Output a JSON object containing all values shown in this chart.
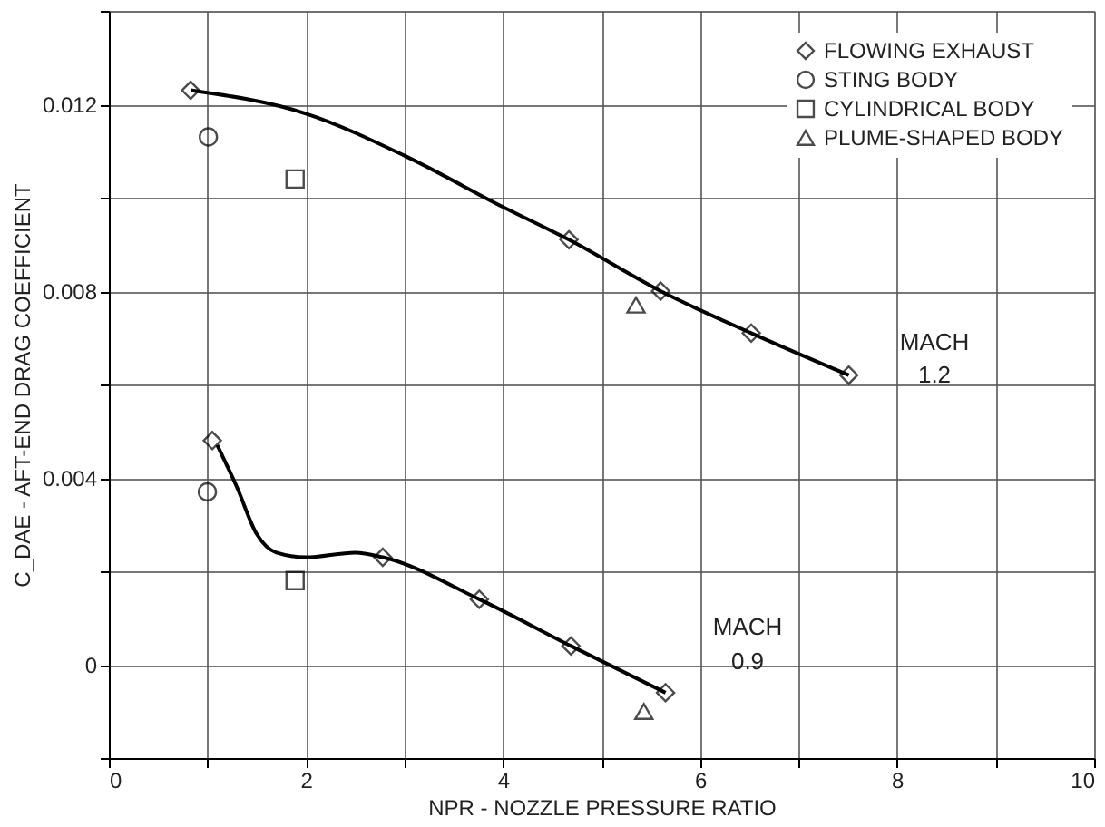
{
  "chart_data": {
    "type": "scatter",
    "xlabel": "NPR - NOZZLE PRESSURE RATIO",
    "ylabel": "C_DAE - AFT-END DRAG COEFFICIENT",
    "xlim": [
      0,
      10
    ],
    "ylim": [
      -0.002,
      0.014
    ],
    "xticks": [
      0,
      {
        "value": 1,
        "label": null
      },
      2,
      {
        "value": 3,
        "label": null
      },
      4,
      {
        "value": 5,
        "label": null
      },
      6,
      {
        "value": 7,
        "label": null
      },
      8,
      {
        "value": 9,
        "label": null
      },
      10
    ],
    "yticks": [
      {
        "value": -0.002,
        "label": null
      },
      0,
      {
        "value": 0.002,
        "label": null
      },
      0.004,
      {
        "value": 0.006,
        "label": null
      },
      0.008,
      {
        "value": 0.01,
        "label": null
      },
      0.012,
      {
        "value": 0.014,
        "label": null
      }
    ],
    "grid": true,
    "legend": "top right",
    "series": [
      {
        "type": "line",
        "color": "#000000",
        "marker": "none",
        "line_style": "solid",
        "x": [
          0.83,
          2.0,
          3.0,
          4.0,
          4.67,
          5.6,
          6.52,
          7.51
        ],
        "values": [
          0.0123,
          0.0118,
          0.0109,
          0.0098,
          0.0091,
          0.008,
          0.0071,
          0.0062
        ]
      },
      {
        "type": "line",
        "color": "#000000",
        "marker": "none",
        "line_style": "solid",
        "x": [
          1.1,
          1.3,
          1.5,
          1.7,
          2.0,
          2.5,
          2.78,
          3.76,
          4.69,
          5.65
        ],
        "values": [
          0.0047,
          0.0038,
          0.0028,
          0.0024,
          0.0023,
          0.0024,
          0.0023,
          0.0014,
          0.0004,
          -0.0006
        ]
      },
      {
        "name": "FLOWING EXHAUST",
        "color": "#000000",
        "marker": "diamond",
        "x": [
          0.83,
          4.67,
          5.6,
          6.52,
          7.51,
          1.05,
          2.78,
          3.76,
          4.69,
          5.65
        ],
        "values": [
          0.0123,
          0.0091,
          0.008,
          0.0071,
          0.0062,
          0.0048,
          0.0023,
          0.0014,
          0.0004,
          -0.0006
        ]
      },
      {
        "name": "STING BODY",
        "color": "#000000",
        "marker": "circle",
        "x": [
          1.01,
          1.0
        ],
        "values": [
          0.0113,
          0.0037
        ]
      },
      {
        "name": "CYLINDRICAL BODY",
        "color": "#000000",
        "marker": "square",
        "x": [
          1.89,
          1.89
        ],
        "values": [
          0.0104,
          0.0018
        ]
      },
      {
        "name": "PLUME-SHAPED BODY",
        "color": "#000000",
        "marker": "triangle",
        "x": [
          5.35,
          5.43
        ],
        "values": [
          0.0077,
          -0.001
        ]
      }
    ],
    "annotations": [
      "MACH",
      "1.2",
      "MACH",
      "0.9"
    ]
  }
}
